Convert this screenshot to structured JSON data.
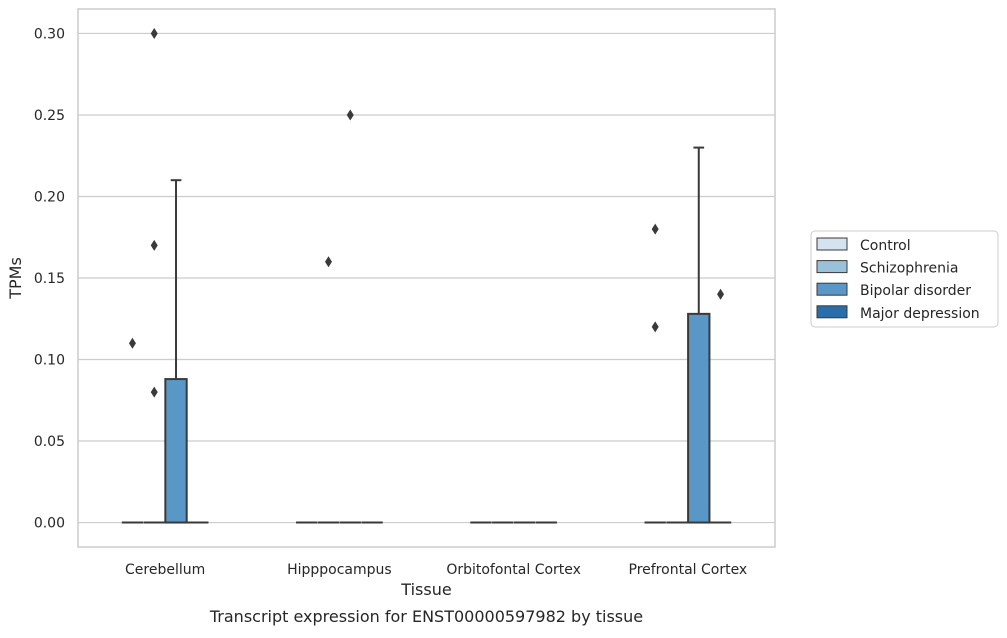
{
  "chart_data": {
    "type": "box",
    "title": "",
    "caption": "Transcript expression for ENST00000597982 by tissue",
    "xlabel": "Tissue",
    "ylabel": "TPMs",
    "categories": [
      "Cerebellum",
      "Hipppocampus",
      "Orbitofontal Cortex",
      "Prefrontal Cortex"
    ],
    "ylim": [
      -0.015,
      0.315
    ],
    "yticks": [
      0.0,
      0.05,
      0.1,
      0.15,
      0.2,
      0.25,
      0.3
    ],
    "ytick_labels": [
      "0.00",
      "0.05",
      "0.10",
      "0.15",
      "0.20",
      "0.25",
      "0.30"
    ],
    "grid": "horizontal",
    "legend_position": "right",
    "series": [
      {
        "name": "Control",
        "color": "#d4e3ef",
        "boxes": [
          {
            "q1": 0,
            "median": 0,
            "q3": 0,
            "whisker_low": 0,
            "whisker_high": 0,
            "outliers": [
              0.11
            ]
          },
          {
            "q1": 0,
            "median": 0,
            "q3": 0,
            "whisker_low": 0,
            "whisker_high": 0,
            "outliers": []
          },
          {
            "q1": 0,
            "median": 0,
            "q3": 0,
            "whisker_low": 0,
            "whisker_high": 0,
            "outliers": []
          },
          {
            "q1": 0,
            "median": 0,
            "q3": 0,
            "whisker_low": 0,
            "whisker_high": 0,
            "outliers": [
              0.18,
              0.12
            ]
          }
        ]
      },
      {
        "name": "Schizophrenia",
        "color": "#9ac1da",
        "boxes": [
          {
            "q1": 0,
            "median": 0,
            "q3": 0,
            "whisker_low": 0,
            "whisker_high": 0,
            "outliers": [
              0.3,
              0.17,
              0.08
            ]
          },
          {
            "q1": 0,
            "median": 0,
            "q3": 0,
            "whisker_low": 0,
            "whisker_high": 0,
            "outliers": [
              0.16
            ]
          },
          {
            "q1": 0,
            "median": 0,
            "q3": 0,
            "whisker_low": 0,
            "whisker_high": 0,
            "outliers": []
          },
          {
            "q1": 0,
            "median": 0,
            "q3": 0,
            "whisker_low": 0,
            "whisker_high": 0,
            "outliers": []
          }
        ]
      },
      {
        "name": "Bipolar disorder",
        "color": "#5997c6",
        "boxes": [
          {
            "q1": 0,
            "median": 0,
            "q3": 0.088,
            "whisker_low": 0,
            "whisker_high": 0.21,
            "outliers": []
          },
          {
            "q1": 0,
            "median": 0,
            "q3": 0,
            "whisker_low": 0,
            "whisker_high": 0,
            "outliers": [
              0.25
            ]
          },
          {
            "q1": 0,
            "median": 0,
            "q3": 0,
            "whisker_low": 0,
            "whisker_high": 0,
            "outliers": []
          },
          {
            "q1": 0,
            "median": 0,
            "q3": 0.128,
            "whisker_low": 0,
            "whisker_high": 0.23,
            "outliers": []
          }
        ]
      },
      {
        "name": "Major depression",
        "color": "#2a6ea9",
        "boxes": [
          {
            "q1": 0,
            "median": 0,
            "q3": 0,
            "whisker_low": 0,
            "whisker_high": 0,
            "outliers": []
          },
          {
            "q1": 0,
            "median": 0,
            "q3": 0,
            "whisker_low": 0,
            "whisker_high": 0,
            "outliers": []
          },
          {
            "q1": 0,
            "median": 0,
            "q3": 0,
            "whisker_low": 0,
            "whisker_high": 0,
            "outliers": []
          },
          {
            "q1": 0,
            "median": 0,
            "q3": 0,
            "whisker_low": 0,
            "whisker_high": 0,
            "outliers": [
              0.14
            ]
          }
        ]
      }
    ]
  }
}
